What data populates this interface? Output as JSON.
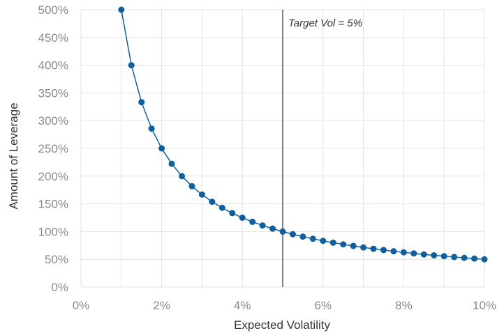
{
  "chart_data": {
    "type": "line",
    "title": "",
    "xlabel": "Expected Volatility",
    "ylabel": "Amount of Leverage",
    "xlim": [
      0,
      10
    ],
    "ylim": [
      0,
      500
    ],
    "x_ticks": [
      0,
      2,
      4,
      6,
      8,
      10
    ],
    "x_tick_labels": [
      "0%",
      "2%",
      "4%",
      "6%",
      "8%",
      "10%"
    ],
    "y_ticks": [
      0,
      50,
      100,
      150,
      200,
      250,
      300,
      350,
      400,
      450,
      500
    ],
    "y_tick_labels": [
      "0%",
      "50%",
      "100%",
      "150%",
      "200%",
      "250%",
      "300%",
      "350%",
      "400%",
      "450%",
      "500%"
    ],
    "grid": true,
    "colors": {
      "series": "#0f5f9e",
      "reference_line": "#555555",
      "grid": "#e3e3e3"
    },
    "series": [
      {
        "x": [
          1.0,
          1.25,
          1.5,
          1.75,
          2.0,
          2.25,
          2.5,
          2.75,
          3.0,
          3.25,
          3.5,
          3.75,
          4.0,
          4.25,
          4.5,
          4.75,
          5.0,
          5.25,
          5.5,
          5.75,
          6.0,
          6.25,
          6.5,
          6.75,
          7.0,
          7.25,
          7.5,
          7.75,
          8.0,
          8.25,
          8.5,
          8.75,
          9.0,
          9.25,
          9.5,
          9.75,
          10.0
        ],
        "values": [
          500,
          400,
          333.3,
          285.7,
          250,
          222.2,
          200,
          181.8,
          166.7,
          153.8,
          142.9,
          133.3,
          125,
          117.6,
          111.1,
          105.3,
          100,
          95.2,
          90.9,
          87.0,
          83.3,
          80,
          76.9,
          74.1,
          71.4,
          69.0,
          66.7,
          64.5,
          62.5,
          60.6,
          58.8,
          57.1,
          55.6,
          54.1,
          52.6,
          51.3,
          50
        ]
      }
    ],
    "reference_line": {
      "x": 5,
      "label": "Target Vol = 5%"
    }
  }
}
